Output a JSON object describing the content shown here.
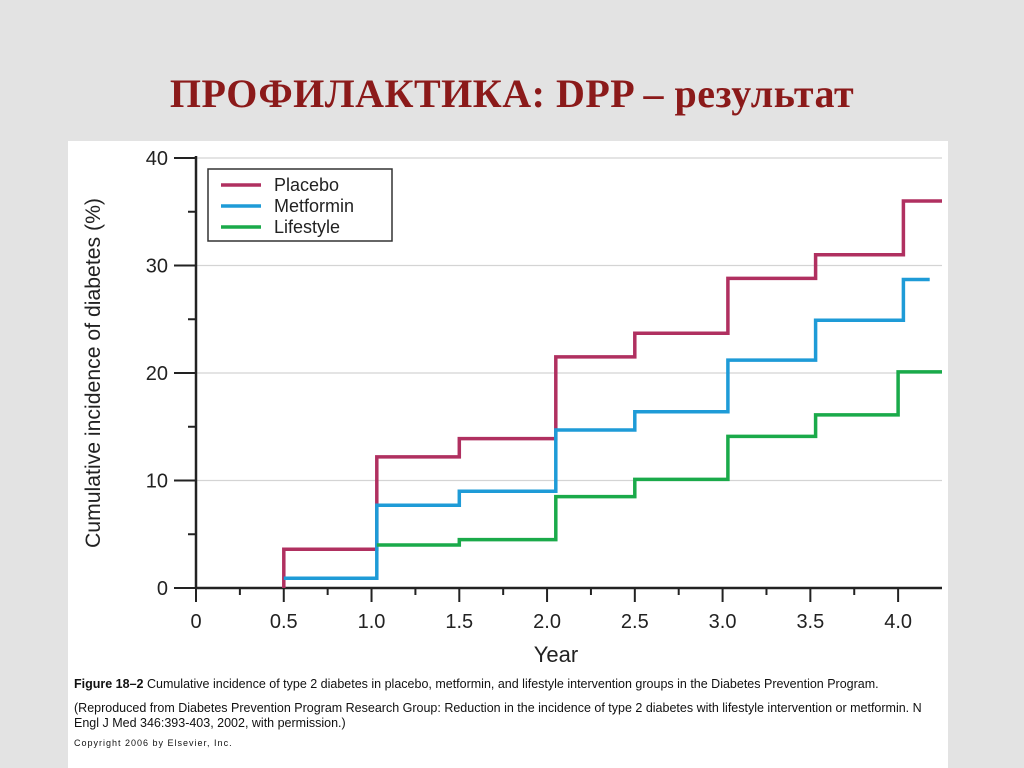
{
  "slide": {
    "title": "ПРОФИЛАКТИКА: DPP – результат"
  },
  "caption": {
    "figure_label": "Figure 18–2",
    "figure_text": "Cumulative incidence of type 2 diabetes in placebo, metformin, and lifestyle intervention groups in the Diabetes Prevention Program.",
    "source": "(Reproduced from Diabetes Prevention Program Research Group: Reduction in the incidence of type 2 diabetes with lifestyle intervention or metformin. N Engl J Med 346:393-403, 2002, with permission.)",
    "copyright": "Copyright 2006 by Elsevier, Inc."
  },
  "chart_data": {
    "type": "line",
    "step": true,
    "xlabel": "Year",
    "ylabel": "Cumulative incidence of diabetes (%)",
    "xlim": [
      0,
      4.25
    ],
    "ylim": [
      0,
      40
    ],
    "x_ticks": [
      "0",
      "0.5",
      "1.0",
      "1.5",
      "2.0",
      "2.5",
      "3.0",
      "3.5",
      "4.0"
    ],
    "x_tick_values": [
      0,
      0.5,
      1.0,
      1.5,
      2.0,
      2.5,
      3.0,
      3.5,
      4.0
    ],
    "y_ticks": [
      "0",
      "10",
      "20",
      "30",
      "40"
    ],
    "y_tick_values": [
      0,
      10,
      20,
      30,
      40
    ],
    "grid": "horizontal",
    "legend_position": "top-left",
    "series": [
      {
        "name": "Placebo",
        "color": "#b03060",
        "points": [
          [
            0.5,
            0
          ],
          [
            0.5,
            3.6
          ],
          [
            1.03,
            3.6
          ],
          [
            1.03,
            12.2
          ],
          [
            1.5,
            12.2
          ],
          [
            1.5,
            13.9
          ],
          [
            2.05,
            13.9
          ],
          [
            2.05,
            21.5
          ],
          [
            2.5,
            21.5
          ],
          [
            2.5,
            23.7
          ],
          [
            3.03,
            23.7
          ],
          [
            3.03,
            28.8
          ],
          [
            3.53,
            28.8
          ],
          [
            3.53,
            31.0
          ],
          [
            4.03,
            31.0
          ],
          [
            4.03,
            36.0
          ],
          [
            4.25,
            36.0
          ]
        ]
      },
      {
        "name": "Metformin",
        "color": "#1e9bd7",
        "points": [
          [
            0.5,
            0.9
          ],
          [
            1.03,
            0.9
          ],
          [
            1.03,
            7.7
          ],
          [
            1.5,
            7.7
          ],
          [
            1.5,
            9.0
          ],
          [
            2.05,
            9.0
          ],
          [
            2.05,
            14.7
          ],
          [
            2.5,
            14.7
          ],
          [
            2.5,
            16.4
          ],
          [
            3.03,
            16.4
          ],
          [
            3.03,
            21.2
          ],
          [
            3.53,
            21.2
          ],
          [
            3.53,
            24.9
          ],
          [
            4.03,
            24.9
          ],
          [
            4.03,
            28.7
          ],
          [
            4.18,
            28.7
          ]
        ]
      },
      {
        "name": "Lifestyle",
        "color": "#1aaa4a",
        "points": [
          [
            1.03,
            4.0
          ],
          [
            1.5,
            4.0
          ],
          [
            1.5,
            4.5
          ],
          [
            2.05,
            4.5
          ],
          [
            2.05,
            8.5
          ],
          [
            2.5,
            8.5
          ],
          [
            2.5,
            10.1
          ],
          [
            3.03,
            10.1
          ],
          [
            3.03,
            14.1
          ],
          [
            3.53,
            14.1
          ],
          [
            3.53,
            16.1
          ],
          [
            4.0,
            16.1
          ],
          [
            4.0,
            20.1
          ],
          [
            4.25,
            20.1
          ]
        ]
      }
    ]
  }
}
